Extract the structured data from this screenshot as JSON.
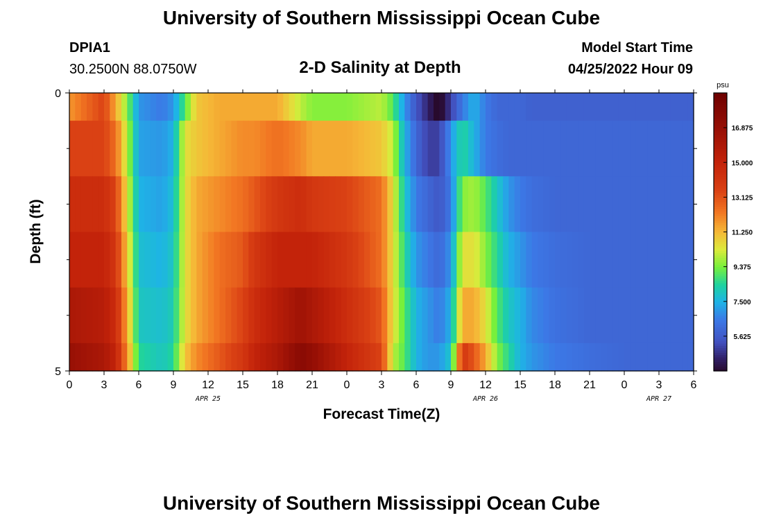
{
  "header": {
    "title": "University of Southern Mississippi Ocean Cube",
    "station_id": "DPIA1",
    "coordinates": "30.2500N  88.0750W",
    "subtitle": "2-D Salinity at Depth",
    "model_start_label": "Model Start Time",
    "model_start_value": "04/25/2022 Hour 09",
    "footer_title": "University of Southern Mississippi Ocean Cube"
  },
  "chart_data": {
    "type": "heatmap",
    "title": "2-D Salinity at Depth",
    "xlabel": "Forecast Time(Z)",
    "ylabel": "Depth (ft)",
    "x_tick_labels": [
      "0",
      "3",
      "6",
      "9",
      "12",
      "15",
      "18",
      "21",
      "0",
      "3",
      "6",
      "9",
      "12",
      "15",
      "18",
      "21",
      "0",
      "3",
      "6"
    ],
    "date_labels": [
      "APR 25",
      "APR 26",
      "APR 27"
    ],
    "y_tick_labels": [
      "0",
      "5"
    ],
    "ylim": [
      0,
      5
    ],
    "x_hours": [
      0,
      54
    ],
    "colorbar": {
      "unit": "psu",
      "ticks": [
        "16.875",
        "15.000",
        "13.125",
        "11.250",
        "9.375",
        "7.500",
        "5.625"
      ],
      "range": [
        3.75,
        18.75
      ]
    },
    "depth_rows": [
      "0-0.5",
      "0.5-1.5",
      "1.5-2.5",
      "2.5-3.5",
      "3.5-4.5",
      "4.5-5"
    ],
    "hour_knots": [
      0,
      3,
      4,
      5,
      6,
      8,
      9,
      10,
      11,
      13,
      15,
      16,
      18,
      20,
      21,
      24,
      27,
      28,
      29,
      30,
      31,
      32,
      33,
      34,
      35,
      36,
      37,
      38,
      39,
      40,
      42,
      45,
      48,
      51,
      54
    ],
    "salinity_psu": [
      [
        11.8,
        13.5,
        11.5,
        9.5,
        7.0,
        6.5,
        7.0,
        9.0,
        11.0,
        11.5,
        11.5,
        11.5,
        11.5,
        10.0,
        9.5,
        9.5,
        10.0,
        9.0,
        7.0,
        5.5,
        4.5,
        3.5,
        5.0,
        6.5,
        7.5,
        6.5,
        6.0,
        6.0,
        6.0,
        5.8,
        5.8,
        5.8,
        5.8,
        5.8,
        5.8
      ],
      [
        13.5,
        13.5,
        12.5,
        10.0,
        7.2,
        7.0,
        7.5,
        10.5,
        11.0,
        11.5,
        12.0,
        12.0,
        12.5,
        12.0,
        11.5,
        11.5,
        11.0,
        10.0,
        7.5,
        6.0,
        5.0,
        5.0,
        7.0,
        8.5,
        7.5,
        6.5,
        6.2,
        6.0,
        6.0,
        6.0,
        6.0,
        6.0,
        6.0,
        6.0,
        6.0
      ],
      [
        14.5,
        14.5,
        13.5,
        10.5,
        7.5,
        7.2,
        7.8,
        10.5,
        11.5,
        12.0,
        12.5,
        13.0,
        14.0,
        14.5,
        14.0,
        13.5,
        12.5,
        10.5,
        8.0,
        6.5,
        6.0,
        5.5,
        6.5,
        9.5,
        9.8,
        9.0,
        8.0,
        7.0,
        6.5,
        6.2,
        6.0,
        6.0,
        6.0,
        6.0,
        6.0
      ],
      [
        15.0,
        15.0,
        14.0,
        11.0,
        7.8,
        7.5,
        8.0,
        10.5,
        11.5,
        12.5,
        13.0,
        14.0,
        15.0,
        15.0,
        15.0,
        14.0,
        12.5,
        10.5,
        8.5,
        7.0,
        6.5,
        6.0,
        7.0,
        10.5,
        10.5,
        9.5,
        8.5,
        7.5,
        7.0,
        6.5,
        6.2,
        6.0,
        6.0,
        6.0,
        6.0
      ],
      [
        16.0,
        15.5,
        14.5,
        11.5,
        8.0,
        7.8,
        8.2,
        10.5,
        11.5,
        12.5,
        13.5,
        14.5,
        15.5,
        16.5,
        16.0,
        14.5,
        13.0,
        10.5,
        9.0,
        7.5,
        7.0,
        6.5,
        7.5,
        11.5,
        11.5,
        10.5,
        9.0,
        8.0,
        7.5,
        6.8,
        6.3,
        6.0,
        6.0,
        6.0,
        6.0
      ],
      [
        16.8,
        16.0,
        15.0,
        12.0,
        8.5,
        8.0,
        8.5,
        11.0,
        12.0,
        13.0,
        14.0,
        15.0,
        16.0,
        17.5,
        17.0,
        15.0,
        13.5,
        10.0,
        9.0,
        7.5,
        7.0,
        7.0,
        8.0,
        14.0,
        13.0,
        11.5,
        9.5,
        8.5,
        7.5,
        7.0,
        6.5,
        6.2,
        6.0,
        6.0,
        6.0
      ]
    ]
  }
}
